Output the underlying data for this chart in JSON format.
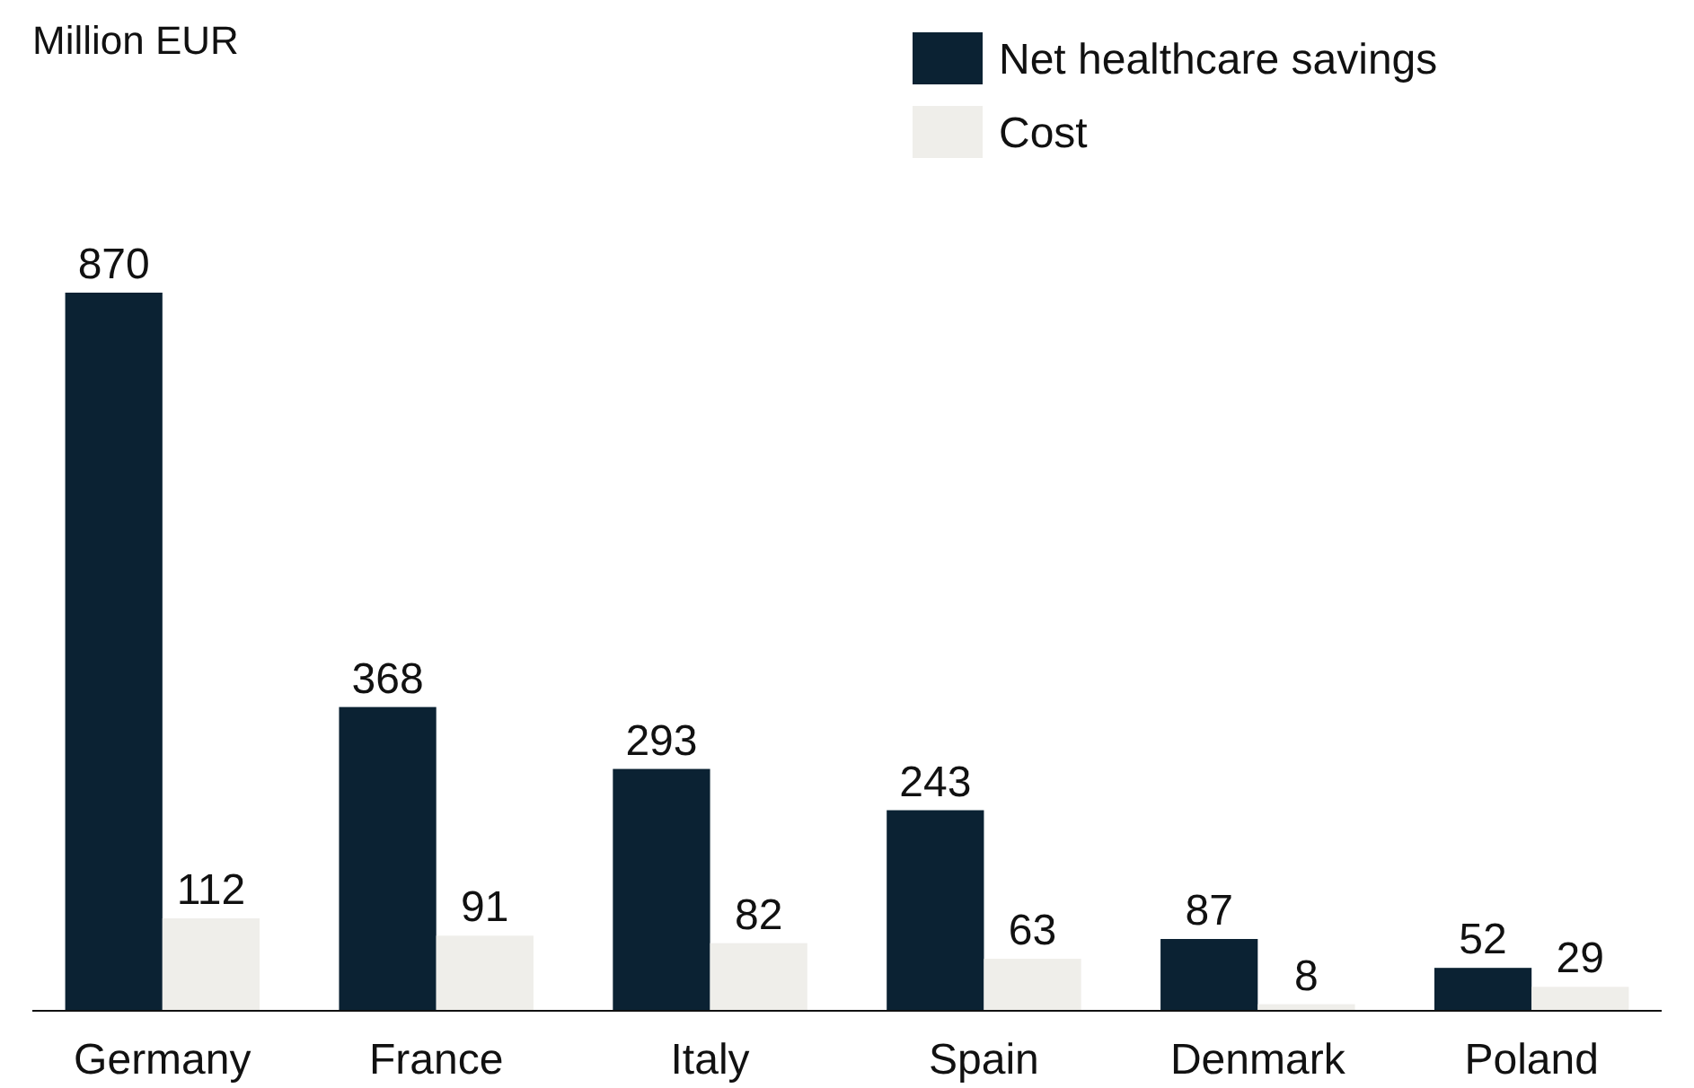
{
  "chart_data": {
    "type": "bar",
    "annotations": [
      "Million EUR"
    ],
    "categories": [
      "Germany",
      "France",
      "Italy",
      "Spain",
      "Denmark",
      "Poland"
    ],
    "series": [
      {
        "name": "Net healthcare savings",
        "color": "#0b2233",
        "values": [
          870,
          368,
          293,
          243,
          87,
          52
        ]
      },
      {
        "name": "Cost",
        "color": "#efeeea",
        "values": [
          112,
          91,
          82,
          63,
          8,
          29
        ]
      }
    ],
    "data_labels": true,
    "legend": "top right",
    "grid": false
  }
}
